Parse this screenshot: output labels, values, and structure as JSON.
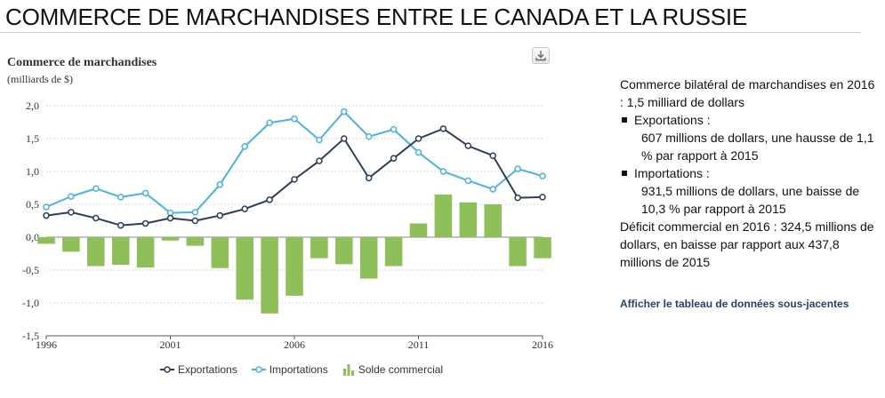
{
  "page": {
    "title": "COMMERCE DE MARCHANDISES ENTRE LE CANADA ET LA RUSSIE"
  },
  "summary": {
    "intro": "Commerce bilatéral de marchandises en 2016 : 1,5 milliard de dollars",
    "exports_label": "Exportations :",
    "exports_detail": "607 millions de dollars, une hausse de 1,1 % par rapport à 2015",
    "imports_label": "Importations :",
    "imports_detail": "931,5 millions de dollars, une baisse de 10,3 % par rapport à 2015",
    "deficit": "Déficit commercial en 2016 : 324,5 millions de dollars, en baisse par rapport aux 437,8 millions de 2015",
    "link_label": "Afficher le tableau de données sous-jacentes"
  },
  "colors": {
    "exports": "#2d3e58",
    "imports": "#4bb3e0",
    "balance": "#8fbf5a",
    "grid": "#d8d8d8",
    "zero_line": "#8a8a8a"
  },
  "chart_data": {
    "type": "line",
    "title": "Commerce de marchandises",
    "subtitle": "(milliards de $)",
    "x": [
      1996,
      1997,
      1998,
      1999,
      2000,
      2001,
      2002,
      2003,
      2004,
      2005,
      2006,
      2007,
      2008,
      2009,
      2010,
      2011,
      2012,
      2013,
      2014,
      2015,
      2016
    ],
    "x_tick_labels": [
      "1996",
      "2001",
      "2006",
      "2011",
      "2016"
    ],
    "x_ticks": [
      1996,
      2001,
      2006,
      2011,
      2016
    ],
    "ylim": [
      -1.5,
      2.0
    ],
    "y_ticks": [
      -1.5,
      -1.0,
      -0.5,
      0.0,
      0.5,
      1.0,
      1.5,
      2.0
    ],
    "y_tick_labels": [
      "-1,5",
      "-1,0",
      "-0,5",
      "0,0",
      "0,5",
      "1,0",
      "1,5",
      "2,0"
    ],
    "grid": true,
    "legend_position": "bottom",
    "series": [
      {
        "name": "Exportations",
        "kind": "line",
        "values": [
          0.33,
          0.38,
          0.29,
          0.18,
          0.21,
          0.29,
          0.25,
          0.33,
          0.43,
          0.57,
          0.88,
          1.16,
          1.5,
          0.9,
          1.2,
          1.5,
          1.65,
          1.39,
          1.24,
          0.6,
          0.61
        ]
      },
      {
        "name": "Importations",
        "kind": "line",
        "values": [
          0.46,
          0.62,
          0.74,
          0.61,
          0.67,
          0.37,
          0.38,
          0.8,
          1.38,
          1.74,
          1.8,
          1.48,
          1.91,
          1.53,
          1.64,
          1.29,
          1.0,
          0.86,
          0.73,
          1.04,
          0.93
        ]
      },
      {
        "name": "Solde commercial",
        "kind": "bar",
        "values": [
          -0.1,
          -0.22,
          -0.44,
          -0.42,
          -0.46,
          -0.05,
          -0.13,
          -0.47,
          -0.95,
          -1.16,
          -0.89,
          -0.32,
          -0.41,
          -0.63,
          -0.44,
          0.21,
          0.65,
          0.53,
          0.5,
          -0.44,
          -0.32
        ]
      }
    ]
  }
}
